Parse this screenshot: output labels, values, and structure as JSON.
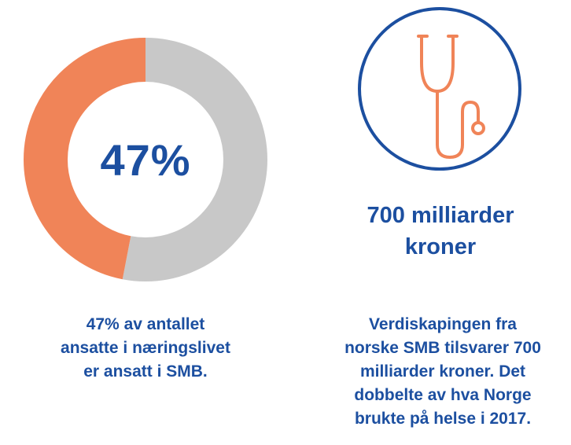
{
  "colors": {
    "accent": "#f08458",
    "track": "#c8c8c8",
    "brand_blue": "#1c4fa0",
    "background": "#ffffff"
  },
  "chart_data": {
    "type": "pie",
    "variant": "donut",
    "center_label": "47%",
    "slices": [
      {
        "value": 47,
        "color": "#f08458"
      },
      {
        "value": 53,
        "color": "#c8c8c8"
      }
    ]
  },
  "donut_caption": {
    "lines": [
      "47% av antallet",
      "ansatte i næringslivet",
      "er ansatt i SMB."
    ]
  },
  "badge": {
    "icon": "stethoscope-icon"
  },
  "stat": {
    "headline_lines": [
      "700 milliarder",
      "kroner"
    ],
    "caption_lines": [
      "Verdiskapingen fra",
      "norske SMB tilsvarer 700",
      "milliarder kroner. Det",
      "dobbelte av hva Norge",
      "brukte på helse i 2017."
    ]
  }
}
